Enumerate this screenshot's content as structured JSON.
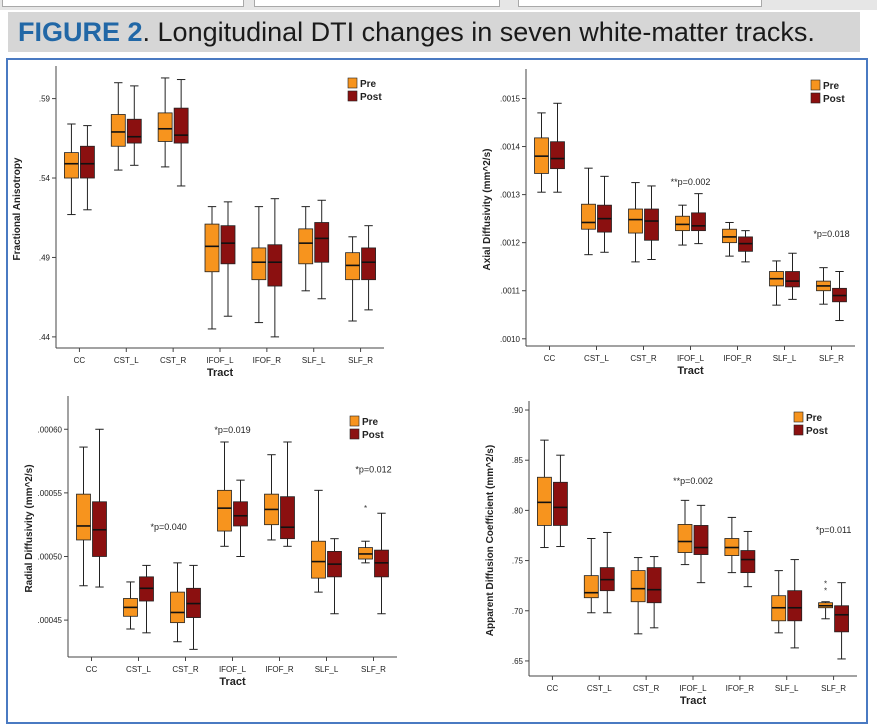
{
  "figure": {
    "label": "FIGURE 2",
    "caption": ". Longitudinal DTI changes in seven white-matter tracks."
  },
  "colors": {
    "pre": "#f7941e",
    "post": "#8b1010",
    "title": "#2167a6",
    "frame": "#4a7ac2"
  },
  "chart_data": [
    {
      "type": "boxplot",
      "xlabel": "Tract",
      "ylabel": "Fractional Anisotropy",
      "categories": [
        "CC",
        "CST_L",
        "CST_R",
        "IFOF_L",
        "IFOF_R",
        "SLF_L",
        "SLF_R"
      ],
      "legend": [
        "Pre",
        "Post"
      ],
      "legend_position": "top-right",
      "ylim": [
        0.433,
        0.608
      ],
      "yticks": [
        0.44,
        0.49,
        0.54,
        0.59
      ],
      "ytick_labels": [
        ".44",
        ".49",
        ".54",
        ".59"
      ],
      "series": [
        {
          "name": "Pre",
          "boxes": [
            {
              "min": 0.517,
              "q1": 0.54,
              "median": 0.549,
              "q3": 0.556,
              "max": 0.574
            },
            {
              "min": 0.545,
              "q1": 0.56,
              "median": 0.569,
              "q3": 0.58,
              "max": 0.6
            },
            {
              "min": 0.547,
              "q1": 0.563,
              "median": 0.571,
              "q3": 0.581,
              "max": 0.603
            },
            {
              "min": 0.445,
              "q1": 0.481,
              "median": 0.497,
              "q3": 0.511,
              "max": 0.522
            },
            {
              "min": 0.449,
              "q1": 0.476,
              "median": 0.487,
              "q3": 0.496,
              "max": 0.522
            },
            {
              "min": 0.469,
              "q1": 0.486,
              "median": 0.499,
              "q3": 0.508,
              "max": 0.522
            },
            {
              "min": 0.45,
              "q1": 0.476,
              "median": 0.485,
              "q3": 0.493,
              "max": 0.503
            }
          ]
        },
        {
          "name": "Post",
          "boxes": [
            {
              "min": 0.52,
              "q1": 0.54,
              "median": 0.549,
              "q3": 0.56,
              "max": 0.573
            },
            {
              "min": 0.548,
              "q1": 0.562,
              "median": 0.566,
              "q3": 0.577,
              "max": 0.598
            },
            {
              "min": 0.535,
              "q1": 0.562,
              "median": 0.567,
              "q3": 0.584,
              "max": 0.602
            },
            {
              "min": 0.453,
              "q1": 0.486,
              "median": 0.499,
              "q3": 0.51,
              "max": 0.525
            },
            {
              "min": 0.44,
              "q1": 0.472,
              "median": 0.487,
              "q3": 0.498,
              "max": 0.527
            },
            {
              "min": 0.464,
              "q1": 0.487,
              "median": 0.502,
              "q3": 0.512,
              "max": 0.526
            },
            {
              "min": 0.457,
              "q1": 0.476,
              "median": 0.487,
              "q3": 0.496,
              "max": 0.51
            }
          ]
        }
      ],
      "annotations": []
    },
    {
      "type": "boxplot",
      "xlabel": "Tract",
      "ylabel": "Axial Diffusivity (mm^2/s)",
      "categories": [
        "CC",
        "CST_L",
        "CST_R",
        "IFOF_L",
        "IFOF_R",
        "SLF_L",
        "SLF_R"
      ],
      "legend": [
        "Pre",
        "Post"
      ],
      "legend_position": "top-right",
      "ylim": [
        0.000985,
        0.001553
      ],
      "yticks": [
        0.001,
        0.0011,
        0.0012,
        0.0013,
        0.0014,
        0.0015
      ],
      "ytick_labels": [
        ".0010",
        ".0011",
        ".0012",
        ".0013",
        ".0014",
        ".0015"
      ],
      "series": [
        {
          "name": "Pre",
          "boxes": [
            {
              "min": 0.001305,
              "q1": 0.001344,
              "median": 0.00138,
              "q3": 0.001418,
              "max": 0.00147
            },
            {
              "min": 0.001175,
              "q1": 0.001228,
              "median": 0.001242,
              "q3": 0.00128,
              "max": 0.001355
            },
            {
              "min": 0.00116,
              "q1": 0.00122,
              "median": 0.001248,
              "q3": 0.00127,
              "max": 0.001325
            },
            {
              "min": 0.001195,
              "q1": 0.001225,
              "median": 0.001238,
              "q3": 0.001255,
              "max": 0.001278
            },
            {
              "min": 0.001172,
              "q1": 0.0012,
              "median": 0.001212,
              "q3": 0.001228,
              "max": 0.001242
            },
            {
              "min": 0.00107,
              "q1": 0.00111,
              "median": 0.001125,
              "q3": 0.00114,
              "max": 0.001162
            },
            {
              "min": 0.001072,
              "q1": 0.0011,
              "median": 0.00111,
              "q3": 0.00112,
              "max": 0.001148
            }
          ]
        },
        {
          "name": "Post",
          "boxes": [
            {
              "min": 0.001305,
              "q1": 0.001354,
              "median": 0.001375,
              "q3": 0.00141,
              "max": 0.00149
            },
            {
              "min": 0.00118,
              "q1": 0.001222,
              "median": 0.00125,
              "q3": 0.001278,
              "max": 0.001338
            },
            {
              "min": 0.001165,
              "q1": 0.001205,
              "median": 0.001245,
              "q3": 0.00127,
              "max": 0.001318
            },
            {
              "min": 0.001198,
              "q1": 0.001225,
              "median": 0.001235,
              "q3": 0.001262,
              "max": 0.001302
            },
            {
              "min": 0.00116,
              "q1": 0.001182,
              "median": 0.001198,
              "q3": 0.001212,
              "max": 0.001225
            },
            {
              "min": 0.001082,
              "q1": 0.001108,
              "median": 0.00112,
              "q3": 0.00114,
              "max": 0.001178
            },
            {
              "min": 0.001038,
              "q1": 0.001077,
              "median": 0.00109,
              "q3": 0.001105,
              "max": 0.00114
            }
          ]
        }
      ],
      "annotations": [
        {
          "text": "**p=0.002",
          "category": "IFOF_L",
          "y": 0.00132
        },
        {
          "text": "*p=0.018",
          "category": "SLF_R",
          "y": 0.001212
        }
      ]
    },
    {
      "type": "boxplot",
      "xlabel": "Tract",
      "ylabel": "Radial Diffusivity (mm^2/s)",
      "categories": [
        "CC",
        "CST_L",
        "CST_R",
        "IFOF_L",
        "IFOF_R",
        "SLF_L",
        "SLF_R"
      ],
      "legend": [
        "Pre",
        "Post"
      ],
      "legend_position": "top-right",
      "ylim": [
        0.000421,
        0.000623
      ],
      "yticks": [
        0.00045,
        0.0005,
        0.00055,
        0.0006
      ],
      "ytick_labels": [
        ".00045",
        ".00050",
        ".00055",
        ".00060"
      ],
      "series": [
        {
          "name": "Pre",
          "boxes": [
            {
              "min": 0.000477,
              "q1": 0.000513,
              "median": 0.000524,
              "q3": 0.000549,
              "max": 0.000586
            },
            {
              "min": 0.000443,
              "q1": 0.000453,
              "median": 0.00046,
              "q3": 0.000467,
              "max": 0.00048
            },
            {
              "min": 0.000433,
              "q1": 0.000448,
              "median": 0.000456,
              "q3": 0.000472,
              "max": 0.000495
            },
            {
              "min": 0.000508,
              "q1": 0.00052,
              "median": 0.000538,
              "q3": 0.000552,
              "max": 0.00059
            },
            {
              "min": 0.000513,
              "q1": 0.000525,
              "median": 0.000537,
              "q3": 0.000549,
              "max": 0.00058
            },
            {
              "min": 0.000472,
              "q1": 0.000483,
              "median": 0.000496,
              "q3": 0.000512,
              "max": 0.000552
            },
            {
              "min": 0.000495,
              "q1": 0.000498,
              "median": 0.000502,
              "q3": 0.000507,
              "max": 0.000512,
              "outliers": [
                0.000538
              ]
            }
          ]
        },
        {
          "name": "Post",
          "boxes": [
            {
              "min": 0.000476,
              "q1": 0.0005,
              "median": 0.000521,
              "q3": 0.000543,
              "max": 0.0006
            },
            {
              "min": 0.00044,
              "q1": 0.000465,
              "median": 0.000475,
              "q3": 0.000484,
              "max": 0.000493
            },
            {
              "min": 0.000427,
              "q1": 0.000452,
              "median": 0.000463,
              "q3": 0.000475,
              "max": 0.000493
            },
            {
              "min": 0.0005,
              "q1": 0.000524,
              "median": 0.000532,
              "q3": 0.000543,
              "max": 0.00056
            },
            {
              "min": 0.000508,
              "q1": 0.000514,
              "median": 0.000523,
              "q3": 0.000547,
              "max": 0.00059
            },
            {
              "min": 0.000455,
              "q1": 0.000484,
              "median": 0.000494,
              "q3": 0.000504,
              "max": 0.000514
            },
            {
              "min": 0.000455,
              "q1": 0.000484,
              "median": 0.000495,
              "q3": 0.000505,
              "max": 0.000534
            }
          ]
        }
      ],
      "annotations": [
        {
          "text": "*p=0.040",
          "category": "CST_L",
          "y": 0.000521
        },
        {
          "text": "*p=0.019",
          "category": "IFOF_L",
          "y": 0.000597
        },
        {
          "text": "*p=0.012",
          "category": "SLF_R",
          "y": 0.000566
        }
      ]
    },
    {
      "type": "boxplot",
      "xlabel": "Tract",
      "ylabel": "Apparent Diffusion Coefficient (mm^2/s)",
      "categories": [
        "CC",
        "CST_L",
        "CST_R",
        "IFOF_L",
        "IFOF_R",
        "SLF_L",
        "SLF_R"
      ],
      "legend": [
        "Pre",
        "Post"
      ],
      "legend_position": "top-right",
      "ylim": [
        0.635,
        0.905
      ],
      "yticks": [
        0.65,
        0.7,
        0.75,
        0.8,
        0.85,
        0.9
      ],
      "ytick_labels": [
        ".65",
        ".70",
        ".75",
        ".80",
        ".85",
        ".90"
      ],
      "series": [
        {
          "name": "Pre",
          "boxes": [
            {
              "min": 0.763,
              "q1": 0.785,
              "median": 0.808,
              "q3": 0.833,
              "max": 0.87
            },
            {
              "min": 0.698,
              "q1": 0.713,
              "median": 0.718,
              "q3": 0.735,
              "max": 0.772
            },
            {
              "min": 0.677,
              "q1": 0.709,
              "median": 0.722,
              "q3": 0.74,
              "max": 0.753
            },
            {
              "min": 0.746,
              "q1": 0.758,
              "median": 0.769,
              "q3": 0.786,
              "max": 0.81
            },
            {
              "min": 0.738,
              "q1": 0.755,
              "median": 0.763,
              "q3": 0.772,
              "max": 0.793
            },
            {
              "min": 0.678,
              "q1": 0.69,
              "median": 0.703,
              "q3": 0.715,
              "max": 0.74
            },
            {
              "min": 0.692,
              "q1": 0.703,
              "median": 0.705,
              "q3": 0.708,
              "max": 0.709,
              "outliers": [
                0.72,
                0.727
              ]
            }
          ]
        },
        {
          "name": "Post",
          "boxes": [
            {
              "min": 0.764,
              "q1": 0.785,
              "median": 0.803,
              "q3": 0.828,
              "max": 0.855
            },
            {
              "min": 0.698,
              "q1": 0.72,
              "median": 0.731,
              "q3": 0.743,
              "max": 0.778
            },
            {
              "min": 0.683,
              "q1": 0.708,
              "median": 0.721,
              "q3": 0.743,
              "max": 0.754
            },
            {
              "min": 0.728,
              "q1": 0.756,
              "median": 0.763,
              "q3": 0.785,
              "max": 0.805
            },
            {
              "min": 0.724,
              "q1": 0.738,
              "median": 0.751,
              "q3": 0.76,
              "max": 0.779
            },
            {
              "min": 0.663,
              "q1": 0.69,
              "median": 0.703,
              "q3": 0.72,
              "max": 0.751
            },
            {
              "min": 0.652,
              "q1": 0.679,
              "median": 0.696,
              "q3": 0.705,
              "max": 0.728
            }
          ]
        }
      ],
      "annotations": [
        {
          "text": "**p=0.002",
          "category": "IFOF_L",
          "y": 0.8262
        },
        {
          "text": "*p=0.011",
          "category": "SLF_R",
          "y": 0.7776
        }
      ]
    }
  ]
}
